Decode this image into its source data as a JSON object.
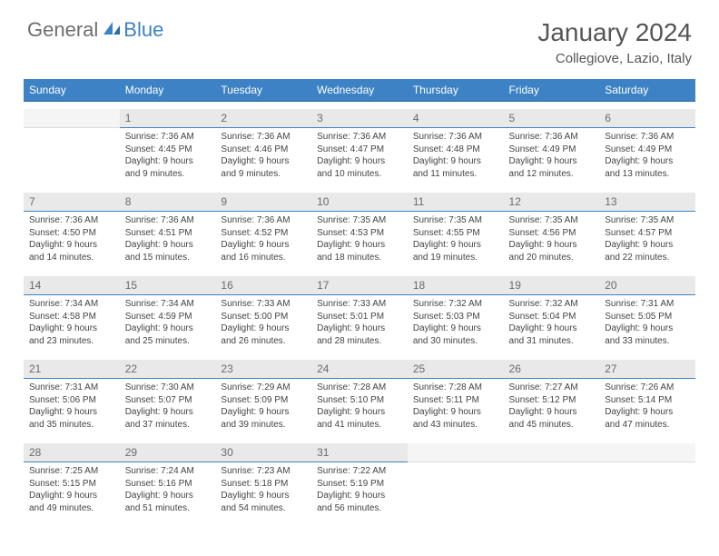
{
  "logo": {
    "text1": "General",
    "text2": "Blue"
  },
  "title": "January 2024",
  "location": "Collegiove, Lazio, Italy",
  "colors": {
    "header_bg": "#3c82c4",
    "header_text": "#ffffff",
    "daynum_bg": "#e9e9e9",
    "daynum_text": "#6a6a6a",
    "cell_text": "#444444",
    "divider": "#3c82c4"
  },
  "day_names": [
    "Sunday",
    "Monday",
    "Tuesday",
    "Wednesday",
    "Thursday",
    "Friday",
    "Saturday"
  ],
  "weeks": [
    [
      {
        "empty": true
      },
      {
        "num": "1",
        "sunrise": "Sunrise: 7:36 AM",
        "sunset": "Sunset: 4:45 PM",
        "daylight1": "Daylight: 9 hours",
        "daylight2": "and 9 minutes."
      },
      {
        "num": "2",
        "sunrise": "Sunrise: 7:36 AM",
        "sunset": "Sunset: 4:46 PM",
        "daylight1": "Daylight: 9 hours",
        "daylight2": "and 9 minutes."
      },
      {
        "num": "3",
        "sunrise": "Sunrise: 7:36 AM",
        "sunset": "Sunset: 4:47 PM",
        "daylight1": "Daylight: 9 hours",
        "daylight2": "and 10 minutes."
      },
      {
        "num": "4",
        "sunrise": "Sunrise: 7:36 AM",
        "sunset": "Sunset: 4:48 PM",
        "daylight1": "Daylight: 9 hours",
        "daylight2": "and 11 minutes."
      },
      {
        "num": "5",
        "sunrise": "Sunrise: 7:36 AM",
        "sunset": "Sunset: 4:49 PM",
        "daylight1": "Daylight: 9 hours",
        "daylight2": "and 12 minutes."
      },
      {
        "num": "6",
        "sunrise": "Sunrise: 7:36 AM",
        "sunset": "Sunset: 4:49 PM",
        "daylight1": "Daylight: 9 hours",
        "daylight2": "and 13 minutes."
      }
    ],
    [
      {
        "num": "7",
        "sunrise": "Sunrise: 7:36 AM",
        "sunset": "Sunset: 4:50 PM",
        "daylight1": "Daylight: 9 hours",
        "daylight2": "and 14 minutes."
      },
      {
        "num": "8",
        "sunrise": "Sunrise: 7:36 AM",
        "sunset": "Sunset: 4:51 PM",
        "daylight1": "Daylight: 9 hours",
        "daylight2": "and 15 minutes."
      },
      {
        "num": "9",
        "sunrise": "Sunrise: 7:36 AM",
        "sunset": "Sunset: 4:52 PM",
        "daylight1": "Daylight: 9 hours",
        "daylight2": "and 16 minutes."
      },
      {
        "num": "10",
        "sunrise": "Sunrise: 7:35 AM",
        "sunset": "Sunset: 4:53 PM",
        "daylight1": "Daylight: 9 hours",
        "daylight2": "and 18 minutes."
      },
      {
        "num": "11",
        "sunrise": "Sunrise: 7:35 AM",
        "sunset": "Sunset: 4:55 PM",
        "daylight1": "Daylight: 9 hours",
        "daylight2": "and 19 minutes."
      },
      {
        "num": "12",
        "sunrise": "Sunrise: 7:35 AM",
        "sunset": "Sunset: 4:56 PM",
        "daylight1": "Daylight: 9 hours",
        "daylight2": "and 20 minutes."
      },
      {
        "num": "13",
        "sunrise": "Sunrise: 7:35 AM",
        "sunset": "Sunset: 4:57 PM",
        "daylight1": "Daylight: 9 hours",
        "daylight2": "and 22 minutes."
      }
    ],
    [
      {
        "num": "14",
        "sunrise": "Sunrise: 7:34 AM",
        "sunset": "Sunset: 4:58 PM",
        "daylight1": "Daylight: 9 hours",
        "daylight2": "and 23 minutes."
      },
      {
        "num": "15",
        "sunrise": "Sunrise: 7:34 AM",
        "sunset": "Sunset: 4:59 PM",
        "daylight1": "Daylight: 9 hours",
        "daylight2": "and 25 minutes."
      },
      {
        "num": "16",
        "sunrise": "Sunrise: 7:33 AM",
        "sunset": "Sunset: 5:00 PM",
        "daylight1": "Daylight: 9 hours",
        "daylight2": "and 26 minutes."
      },
      {
        "num": "17",
        "sunrise": "Sunrise: 7:33 AM",
        "sunset": "Sunset: 5:01 PM",
        "daylight1": "Daylight: 9 hours",
        "daylight2": "and 28 minutes."
      },
      {
        "num": "18",
        "sunrise": "Sunrise: 7:32 AM",
        "sunset": "Sunset: 5:03 PM",
        "daylight1": "Daylight: 9 hours",
        "daylight2": "and 30 minutes."
      },
      {
        "num": "19",
        "sunrise": "Sunrise: 7:32 AM",
        "sunset": "Sunset: 5:04 PM",
        "daylight1": "Daylight: 9 hours",
        "daylight2": "and 31 minutes."
      },
      {
        "num": "20",
        "sunrise": "Sunrise: 7:31 AM",
        "sunset": "Sunset: 5:05 PM",
        "daylight1": "Daylight: 9 hours",
        "daylight2": "and 33 minutes."
      }
    ],
    [
      {
        "num": "21",
        "sunrise": "Sunrise: 7:31 AM",
        "sunset": "Sunset: 5:06 PM",
        "daylight1": "Daylight: 9 hours",
        "daylight2": "and 35 minutes."
      },
      {
        "num": "22",
        "sunrise": "Sunrise: 7:30 AM",
        "sunset": "Sunset: 5:07 PM",
        "daylight1": "Daylight: 9 hours",
        "daylight2": "and 37 minutes."
      },
      {
        "num": "23",
        "sunrise": "Sunrise: 7:29 AM",
        "sunset": "Sunset: 5:09 PM",
        "daylight1": "Daylight: 9 hours",
        "daylight2": "and 39 minutes."
      },
      {
        "num": "24",
        "sunrise": "Sunrise: 7:28 AM",
        "sunset": "Sunset: 5:10 PM",
        "daylight1": "Daylight: 9 hours",
        "daylight2": "and 41 minutes."
      },
      {
        "num": "25",
        "sunrise": "Sunrise: 7:28 AM",
        "sunset": "Sunset: 5:11 PM",
        "daylight1": "Daylight: 9 hours",
        "daylight2": "and 43 minutes."
      },
      {
        "num": "26",
        "sunrise": "Sunrise: 7:27 AM",
        "sunset": "Sunset: 5:12 PM",
        "daylight1": "Daylight: 9 hours",
        "daylight2": "and 45 minutes."
      },
      {
        "num": "27",
        "sunrise": "Sunrise: 7:26 AM",
        "sunset": "Sunset: 5:14 PM",
        "daylight1": "Daylight: 9 hours",
        "daylight2": "and 47 minutes."
      }
    ],
    [
      {
        "num": "28",
        "sunrise": "Sunrise: 7:25 AM",
        "sunset": "Sunset: 5:15 PM",
        "daylight1": "Daylight: 9 hours",
        "daylight2": "and 49 minutes."
      },
      {
        "num": "29",
        "sunrise": "Sunrise: 7:24 AM",
        "sunset": "Sunset: 5:16 PM",
        "daylight1": "Daylight: 9 hours",
        "daylight2": "and 51 minutes."
      },
      {
        "num": "30",
        "sunrise": "Sunrise: 7:23 AM",
        "sunset": "Sunset: 5:18 PM",
        "daylight1": "Daylight: 9 hours",
        "daylight2": "and 54 minutes."
      },
      {
        "num": "31",
        "sunrise": "Sunrise: 7:22 AM",
        "sunset": "Sunset: 5:19 PM",
        "daylight1": "Daylight: 9 hours",
        "daylight2": "and 56 minutes."
      },
      {
        "empty": true
      },
      {
        "empty": true
      },
      {
        "empty": true
      }
    ]
  ]
}
